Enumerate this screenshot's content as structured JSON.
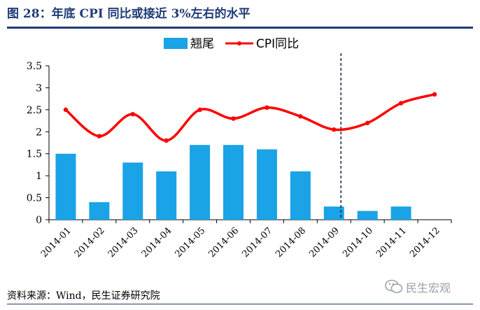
{
  "figure": {
    "title": "图 28：年底 CPI 同比或接近 3%左右的水平",
    "source": "资料来源：Wind，民生证券研究院",
    "watermark": "民生宏观"
  },
  "colors": {
    "bar": "#1aa3e6",
    "line": "#ff0000",
    "title": "#1f3c78",
    "marker_line": "#1f2a5a"
  },
  "chart_data": {
    "type": "bar",
    "categories": [
      "2014-01",
      "2014-02",
      "2014-03",
      "2014-04",
      "2014-05",
      "2014-06",
      "2014-07",
      "2014-08",
      "2014-09",
      "2014-10",
      "2014-11",
      "2014-12"
    ],
    "series": [
      {
        "name": "翘尾",
        "type": "bar",
        "values": [
          1.5,
          0.4,
          1.3,
          1.1,
          1.7,
          1.7,
          1.6,
          1.1,
          0.3,
          0.2,
          0.3,
          null
        ]
      },
      {
        "name": "CPI同比",
        "type": "line",
        "values": [
          2.5,
          1.9,
          2.4,
          1.8,
          2.5,
          2.3,
          2.55,
          2.35,
          2.05,
          2.2,
          2.65,
          2.85
        ]
      }
    ],
    "yticks": [
      "0",
      "0.5",
      "1",
      "1.5",
      "2",
      "2.5",
      "3",
      "3.5"
    ],
    "ylim": [
      0,
      3.5
    ],
    "grid": false,
    "legend": "top-center",
    "vertical_marker": "2014-09"
  }
}
